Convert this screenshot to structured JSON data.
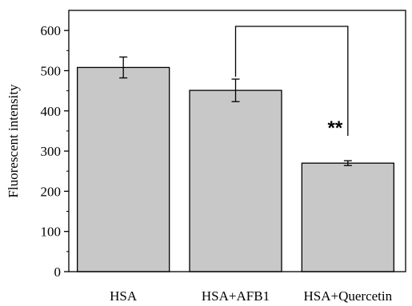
{
  "chart_data": {
    "type": "bar",
    "categories": [
      "HSA",
      "HSA+AFB1",
      "HSA+Quercetin"
    ],
    "values": [
      508,
      451,
      270
    ],
    "errors": [
      26,
      28,
      6
    ],
    "xlabel": "",
    "ylabel": "Fluorescent intensity",
    "ylim": [
      0,
      650
    ],
    "yticks": [
      "0",
      "100",
      "200",
      "300",
      "400",
      "500",
      "600"
    ],
    "bar_color": "#c8c8c8",
    "grid": false,
    "significance": {
      "from": "HSA+AFB1",
      "to": "HSA+Quercetin",
      "label": "**"
    }
  }
}
